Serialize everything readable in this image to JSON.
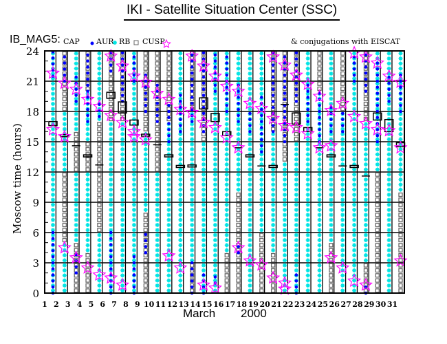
{
  "title": "IKI - Satellite Situation Center (SSC)",
  "legend": {
    "satellite": "IB_MAG5:",
    "items": [
      {
        "label": "CAP",
        "symbol": "dot",
        "color": "#0000ff"
      },
      {
        "label": "AUR",
        "symbol": "asterisk",
        "color": "#00e5e5"
      },
      {
        "label": "RB",
        "symbol": "box",
        "color": "#666666"
      },
      {
        "label": "CUSP",
        "symbol": "star",
        "color": "#ff00ff"
      }
    ],
    "conjugation_note": "& conjugations with EISCAT"
  },
  "chart_data": {
    "type": "scatter",
    "title": "IKI - Satellite Situation Center (SSC)",
    "xlabel_month": "March",
    "xlabel_year": "2000",
    "ylabel": "Moscow time (hours)",
    "xlim": [
      1,
      32
    ],
    "ylim": [
      0,
      24
    ],
    "xticks": [
      "1",
      "2",
      "3",
      "4",
      "5",
      "6",
      "7",
      "8",
      "9",
      "10",
      "11",
      "12",
      "13",
      "14",
      "15",
      "16",
      "17",
      "18",
      "19",
      "20",
      "21",
      "22",
      "23",
      "24",
      "25",
      "26",
      "27",
      "28",
      "29",
      "30",
      "31"
    ],
    "yticks": [
      0,
      3,
      6,
      9,
      12,
      15,
      18,
      21,
      24
    ],
    "grid": true,
    "days": [
      {
        "day": 1,
        "aur": [
          [
            0,
            24
          ]
        ],
        "cap": [
          [
            21.5,
            24
          ],
          [
            0,
            6
          ]
        ],
        "cusp": [
          21.8,
          16.2
        ],
        "box": [
          16.8,
          0.4
        ]
      },
      {
        "day": 2,
        "aur": [
          [
            12,
            18
          ],
          [
            0,
            5
          ]
        ],
        "cap": [
          [
            21,
            24
          ]
        ],
        "cusp": [
          20.8,
          15.5,
          4.5
        ],
        "box": [
          15.6,
          0.2
        ]
      },
      {
        "day": 3,
        "aur": [
          [
            16,
            24
          ],
          [
            5,
            12
          ]
        ],
        "cap": [
          [
            19,
            22
          ],
          [
            2,
            4
          ]
        ],
        "cusp": [
          20.2,
          3.5
        ],
        "box": [
          14.6,
          0
        ]
      },
      {
        "day": 4,
        "aur": [
          [
            15,
            20
          ],
          [
            4,
            12
          ]
        ],
        "cap": [
          [
            17,
            24
          ]
        ],
        "cusp": [
          19.2,
          2.5
        ],
        "box": [
          13.6,
          0.2
        ]
      },
      {
        "day": 5,
        "aur": [
          [
            17,
            24
          ],
          [
            0,
            6
          ]
        ],
        "cap": [
          [
            17.5,
            19
          ]
        ],
        "cusp": [
          18.5,
          1.8
        ],
        "box": [
          12.7,
          0
        ]
      },
      {
        "day": 6,
        "aur": [
          [
            0,
            17
          ]
        ],
        "cap": [
          [
            22,
            24
          ],
          [
            0,
            6
          ]
        ],
        "cusp": [
          23.5,
          17.6,
          1.5
        ],
        "box": [
          19.6,
          0.6
        ]
      },
      {
        "day": 7,
        "aur": [
          [
            0,
            17
          ]
        ],
        "cap": [
          [
            19,
            24
          ]
        ],
        "cusp": [
          22.5,
          16.9,
          0.8
        ],
        "box": [
          18.4,
          1.1
        ]
      },
      {
        "day": 8,
        "aur": [
          [
            0,
            24
          ]
        ],
        "cap": [
          [
            21,
            24
          ],
          [
            0,
            4
          ]
        ],
        "cusp": [
          21.5,
          16,
          15.5
        ],
        "box": [
          16.9,
          0.5
        ]
      },
      {
        "day": 9,
        "aur": [
          [
            8,
            16
          ]
        ],
        "cap": [
          [
            18,
            22
          ],
          [
            4,
            6
          ]
        ],
        "cusp": [
          20.9,
          15.2
        ],
        "box": [
          15.7,
          0.1
        ]
      },
      {
        "day": 10,
        "aur": [
          [
            0,
            12
          ]
        ],
        "cap": [
          [
            17,
            21
          ]
        ],
        "cusp": [
          19.8
        ],
        "box": [
          14.7,
          0
        ]
      },
      {
        "day": 11,
        "aur": [
          [
            0,
            17
          ]
        ],
        "cap": [
          [
            15,
            19
          ]
        ],
        "cusp": [
          19.2,
          3.7
        ],
        "box": [
          13.6,
          0.2
        ]
      },
      {
        "day": 12,
        "aur": [
          [
            0,
            24
          ]
        ],
        "cap": [
          [
            16,
            20
          ]
        ],
        "cusp": [
          18.2,
          2.5
        ],
        "box": [
          12.6,
          0.1
        ]
      },
      {
        "day": 13,
        "aur": [
          [
            3,
            18
          ]
        ],
        "cap": [
          [
            17,
            24
          ],
          [
            0,
            3
          ]
        ],
        "cusp": [
          23.5,
          17.9
        ],
        "box": [
          12.6,
          0.2
        ]
      },
      {
        "day": 14,
        "aur": [
          [
            0,
            15
          ]
        ],
        "cap": [
          [
            16,
            24
          ],
          [
            0,
            2
          ]
        ],
        "cusp": [
          22.5,
          16.9,
          0.8
        ],
        "box": [
          18.8,
          1.1
        ]
      },
      {
        "day": 15,
        "aur": [
          [
            0,
            24
          ]
        ],
        "cap": [
          [
            20,
            24
          ],
          [
            1,
            2
          ]
        ],
        "cusp": [
          21.5,
          16.4,
          0.5
        ],
        "box": [
          17.4,
          0.8
        ]
      },
      {
        "day": 16,
        "aur": [
          [
            4,
            24
          ]
        ],
        "cap": [
          [
            18,
            24
          ]
        ],
        "cusp": [
          20.5,
          15.4
        ],
        "box": [
          15.8,
          0.4
        ]
      },
      {
        "day": 17,
        "aur": [
          [
            10,
            24
          ]
        ],
        "cap": [
          [
            17,
            21
          ],
          [
            4,
            5
          ]
        ],
        "cusp": [
          20,
          14.4,
          4.5
        ],
        "box": [
          14.4,
          0
        ]
      },
      {
        "day": 18,
        "aur": [
          [
            0,
            24
          ]
        ],
        "cap": [
          [
            16,
            18
          ]
        ],
        "cusp": [
          18.8,
          3.2
        ],
        "box": [
          13.6,
          0.2
        ]
      },
      {
        "day": 19,
        "aur": [
          [
            6,
            24
          ]
        ],
        "cap": [
          [
            14,
            20
          ]
        ],
        "cusp": [
          18.3,
          2.8
        ],
        "box": [
          12.6,
          0
        ]
      },
      {
        "day": 20,
        "aur": [
          [
            4,
            16
          ]
        ],
        "cap": [
          [
            16,
            24
          ]
        ],
        "cusp": [
          23.4,
          17.3,
          1.5
        ],
        "box": [
          12.6,
          0.1
        ]
      },
      {
        "day": 21,
        "aur": [
          [
            0,
            13
          ]
        ],
        "cap": [
          [
            15,
            24
          ]
        ],
        "cusp": [
          22.6,
          16.6,
          1,
          0.4
        ],
        "box": [
          18.7,
          0
        ]
      },
      {
        "day": 22,
        "aur": [
          [
            0,
            15
          ]
        ],
        "cap": [
          [
            19,
            24
          ],
          [
            0,
            2
          ]
        ],
        "cusp": [
          21.6,
          16.4
        ],
        "box": [
          17.3,
          1.1
        ]
      },
      {
        "day": 23,
        "aur": [
          [
            0,
            24
          ]
        ],
        "cap": [
          [
            17,
            21
          ]
        ],
        "cusp": [
          20.7,
          15.8
        ],
        "box": [
          16.2,
          0.4
        ]
      },
      {
        "day": 24,
        "aur": [
          [
            0,
            20
          ]
        ],
        "cap": [
          [
            15,
            20
          ]
        ],
        "cusp": [
          19.5,
          14.4
        ],
        "box": [
          14.4,
          0
        ]
      },
      {
        "day": 25,
        "aur": [
          [
            5,
            24
          ]
        ],
        "cap": [
          [
            16,
            19
          ]
        ],
        "cusp": [
          18.1,
          14.6,
          3.5
        ],
        "box": [
          13.6,
          0.2
        ]
      },
      {
        "day": 26,
        "aur": [
          [
            0,
            18
          ]
        ],
        "cap": [
          [
            16,
            18
          ]
        ],
        "cusp": [
          18.8,
          2.5
        ],
        "box": [
          12.6,
          0
        ]
      },
      {
        "day": 27,
        "aur": [
          [
            0,
            24
          ]
        ],
        "cap": [
          [
            21,
            24
          ]
        ],
        "cusp": [
          23.8,
          17.5,
          1.2
        ],
        "box": [
          12.6,
          0.1
        ]
      },
      {
        "day": 28,
        "aur": [
          [
            3,
            17
          ]
        ],
        "cap": [
          [
            20,
            24
          ],
          [
            0,
            1
          ]
        ],
        "cusp": [
          23.4,
          16.8,
          0.8
        ],
        "box": [
          11.6,
          0
        ]
      },
      {
        "day": 29,
        "aur": [
          [
            12,
            24
          ]
        ],
        "cap": [
          [
            15,
            23
          ]
        ],
        "cusp": [
          22.8,
          16.2
        ],
        "box": [
          17.5,
          0.7
        ]
      },
      {
        "day": 30,
        "aur": [
          [
            0,
            24
          ]
        ],
        "cap": [
          [
            19,
            22
          ]
        ],
        "cusp": [
          21.5,
          16.1
        ],
        "box": [
          16.6,
          1.2
        ]
      },
      {
        "day": 31,
        "aur": [
          [
            10,
            24
          ]
        ],
        "cap": [
          [
            18,
            22
          ]
        ],
        "cusp": [
          20.9,
          14.4,
          3.2
        ],
        "box": [
          14.7,
          0.4
        ]
      }
    ]
  }
}
